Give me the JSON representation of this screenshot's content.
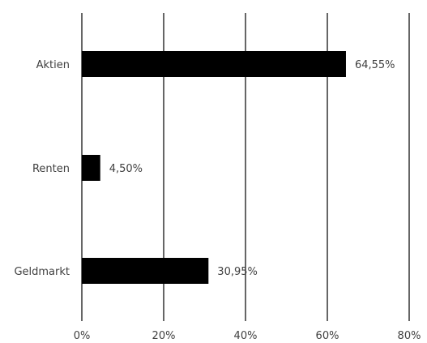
{
  "chart_data": {
    "type": "bar",
    "orientation": "horizontal",
    "categories": [
      "Aktien",
      "Renten",
      "Geldmarkt"
    ],
    "values": [
      64.55,
      4.5,
      30.95
    ],
    "data_labels": [
      "64,55%",
      "4,50%",
      "30,95%"
    ],
    "title": "",
    "xlabel": "",
    "ylabel": "",
    "xlim": [
      0,
      80
    ],
    "x_ticks": [
      0,
      20,
      40,
      60,
      80
    ],
    "x_tick_labels": [
      "0%",
      "20%",
      "40%",
      "60%",
      "80%"
    ],
    "grid": "vertical",
    "legend": "none",
    "bar_color": "#000000",
    "grid_color": "#000000"
  }
}
